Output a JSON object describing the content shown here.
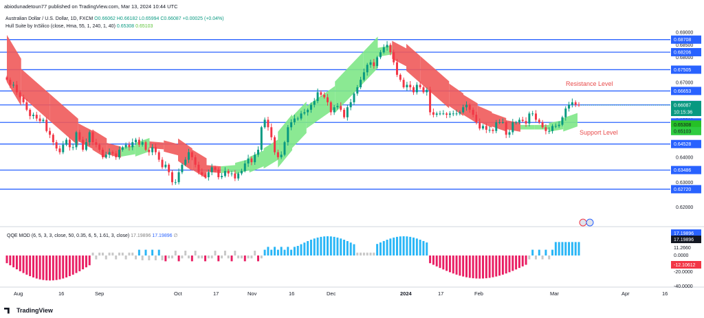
{
  "publisher": "abiodunadetoun77 published on TradingView.com, Mar 13, 2024 10:44 UTC",
  "symbol_line": {
    "name": "Australian Dollar / U.S. Dollar, 1D, FXCM",
    "o": "O0.66062",
    "h": "H0.66182",
    "l": "L0.65994",
    "c": "C0.66087",
    "chg": "+0.00025 (+0.04%)"
  },
  "indicator_line": {
    "name": "Hull Suite by InSilico (close, Hma, 55, 1, 240, 1, 40)",
    "v1": "0.65308",
    "v2": "0.65103"
  },
  "qqe": {
    "name": "QQE MOD (6, 5, 3, 3, close, 50, 0.35, 6, 5, 1.61, 3, close)",
    "v1": "17.19896",
    "v2": "17.19896",
    "v3": "∅"
  },
  "brand": "TradingView",
  "colors": {
    "up": "#089981",
    "down": "#f23645",
    "level": "#2962ff",
    "hull_up": "#7ee787",
    "hull_down": "#ef5a5a",
    "qqe_pos": "#29b6f6",
    "qqe_neg": "#e91e63",
    "qqe_neutral": "#c8c8c8"
  },
  "chart_data": {
    "type": "candlestick",
    "symbol": "AUDUSD",
    "timeframe": "1D",
    "y_range": [
      0.6155,
      0.6925
    ],
    "x_ticks": [
      "Aug",
      "16",
      "Sep",
      "Oct",
      "17",
      "Nov",
      "16",
      "Dec",
      "2024",
      "17",
      "Feb",
      "Mar",
      "Apr",
      "16"
    ],
    "y_ticks": [
      "0.69000",
      "0.68500",
      "0.68000",
      "0.67000",
      "0.66000",
      "0.65500",
      "0.65000",
      "0.64000",
      "0.63000",
      "0.62000"
    ],
    "levels": [
      0.68708,
      0.68206,
      0.67505,
      0.66653,
      0.66094,
      0.65394,
      0.64528,
      0.63486,
      0.6272
    ],
    "level_labels": [
      "0.68708",
      "0.68206",
      "0.67505",
      "0.66653",
      "0.66094",
      "0.65394",
      "0.64528",
      "0.63486",
      "0.62720"
    ],
    "current_price": "0.66087",
    "countdown": "10:15:36",
    "hull_values": [
      "0.65308",
      "0.65103"
    ],
    "annotations": [
      "Resistance Level",
      "Support Level"
    ],
    "closes": [
      0.671,
      0.669,
      0.669,
      0.666,
      0.664,
      0.662,
      0.659,
      0.6565,
      0.657,
      0.6555,
      0.6545,
      0.655,
      0.6505,
      0.649,
      0.646,
      0.6435,
      0.642,
      0.645,
      0.647,
      0.644,
      0.644,
      0.65,
      0.647,
      0.643,
      0.646,
      0.65,
      0.646,
      0.645,
      0.643,
      0.64,
      0.641,
      0.642,
      0.6415,
      0.64,
      0.643,
      0.644,
      0.645,
      0.644,
      0.646,
      0.647,
      0.645,
      0.646,
      0.643,
      0.642,
      0.644,
      0.642,
      0.639,
      0.636,
      0.637,
      0.634,
      0.63,
      0.63,
      0.634,
      0.637,
      0.639,
      0.642,
      0.64,
      0.637,
      0.634,
      0.633,
      0.632,
      0.634,
      0.636,
      0.635,
      0.632,
      0.6325,
      0.6345,
      0.6335,
      0.6335,
      0.6315,
      0.6335,
      0.6345,
      0.6375,
      0.6395,
      0.638,
      0.641,
      0.643,
      0.652,
      0.655,
      0.652,
      0.648,
      0.642,
      0.64,
      0.641,
      0.646,
      0.652,
      0.654,
      0.6555,
      0.6555,
      0.6575,
      0.658,
      0.659,
      0.661,
      0.6625,
      0.666,
      0.665,
      0.664,
      0.662,
      0.658,
      0.66,
      0.6605,
      0.659,
      0.656,
      0.66,
      0.662,
      0.6655,
      0.668,
      0.671,
      0.674,
      0.677,
      0.678,
      0.6765,
      0.68,
      0.682,
      0.684,
      0.685,
      0.682,
      0.678,
      0.673,
      0.671,
      0.668,
      0.669,
      0.668,
      0.666,
      0.669,
      0.668,
      0.666,
      0.667,
      0.658,
      0.657,
      0.6575,
      0.6575,
      0.6575,
      0.657,
      0.6575,
      0.6575,
      0.6575,
      0.658,
      0.66,
      0.661,
      0.659,
      0.657,
      0.654,
      0.6515,
      0.6525,
      0.651,
      0.651,
      0.6505,
      0.654,
      0.654,
      0.654,
      0.649,
      0.65,
      0.654,
      0.654,
      0.655,
      0.6545,
      0.6535,
      0.6575,
      0.6575,
      0.655,
      0.654,
      0.652,
      0.6505,
      0.6505,
      0.6525,
      0.6525,
      0.653,
      0.656,
      0.6595,
      0.661,
      0.662,
      0.661,
      0.6609
    ],
    "hull_series": [
      0.6795,
      0.67,
      0.665,
      0.66,
      0.655,
      0.65,
      0.647,
      0.6435,
      0.642,
      0.643,
      0.645,
      0.6445,
      0.643,
      0.639,
      0.6355,
      0.635,
      0.6355,
      0.637,
      0.6395,
      0.643,
      0.65,
      0.656,
      0.66,
      0.664,
      0.67,
      0.676,
      0.682,
      0.683,
      0.68,
      0.675,
      0.67,
      0.665,
      0.661,
      0.6575,
      0.655,
      0.653,
      0.652,
      0.652,
      0.652,
      0.653,
      0.655
    ]
  }
}
